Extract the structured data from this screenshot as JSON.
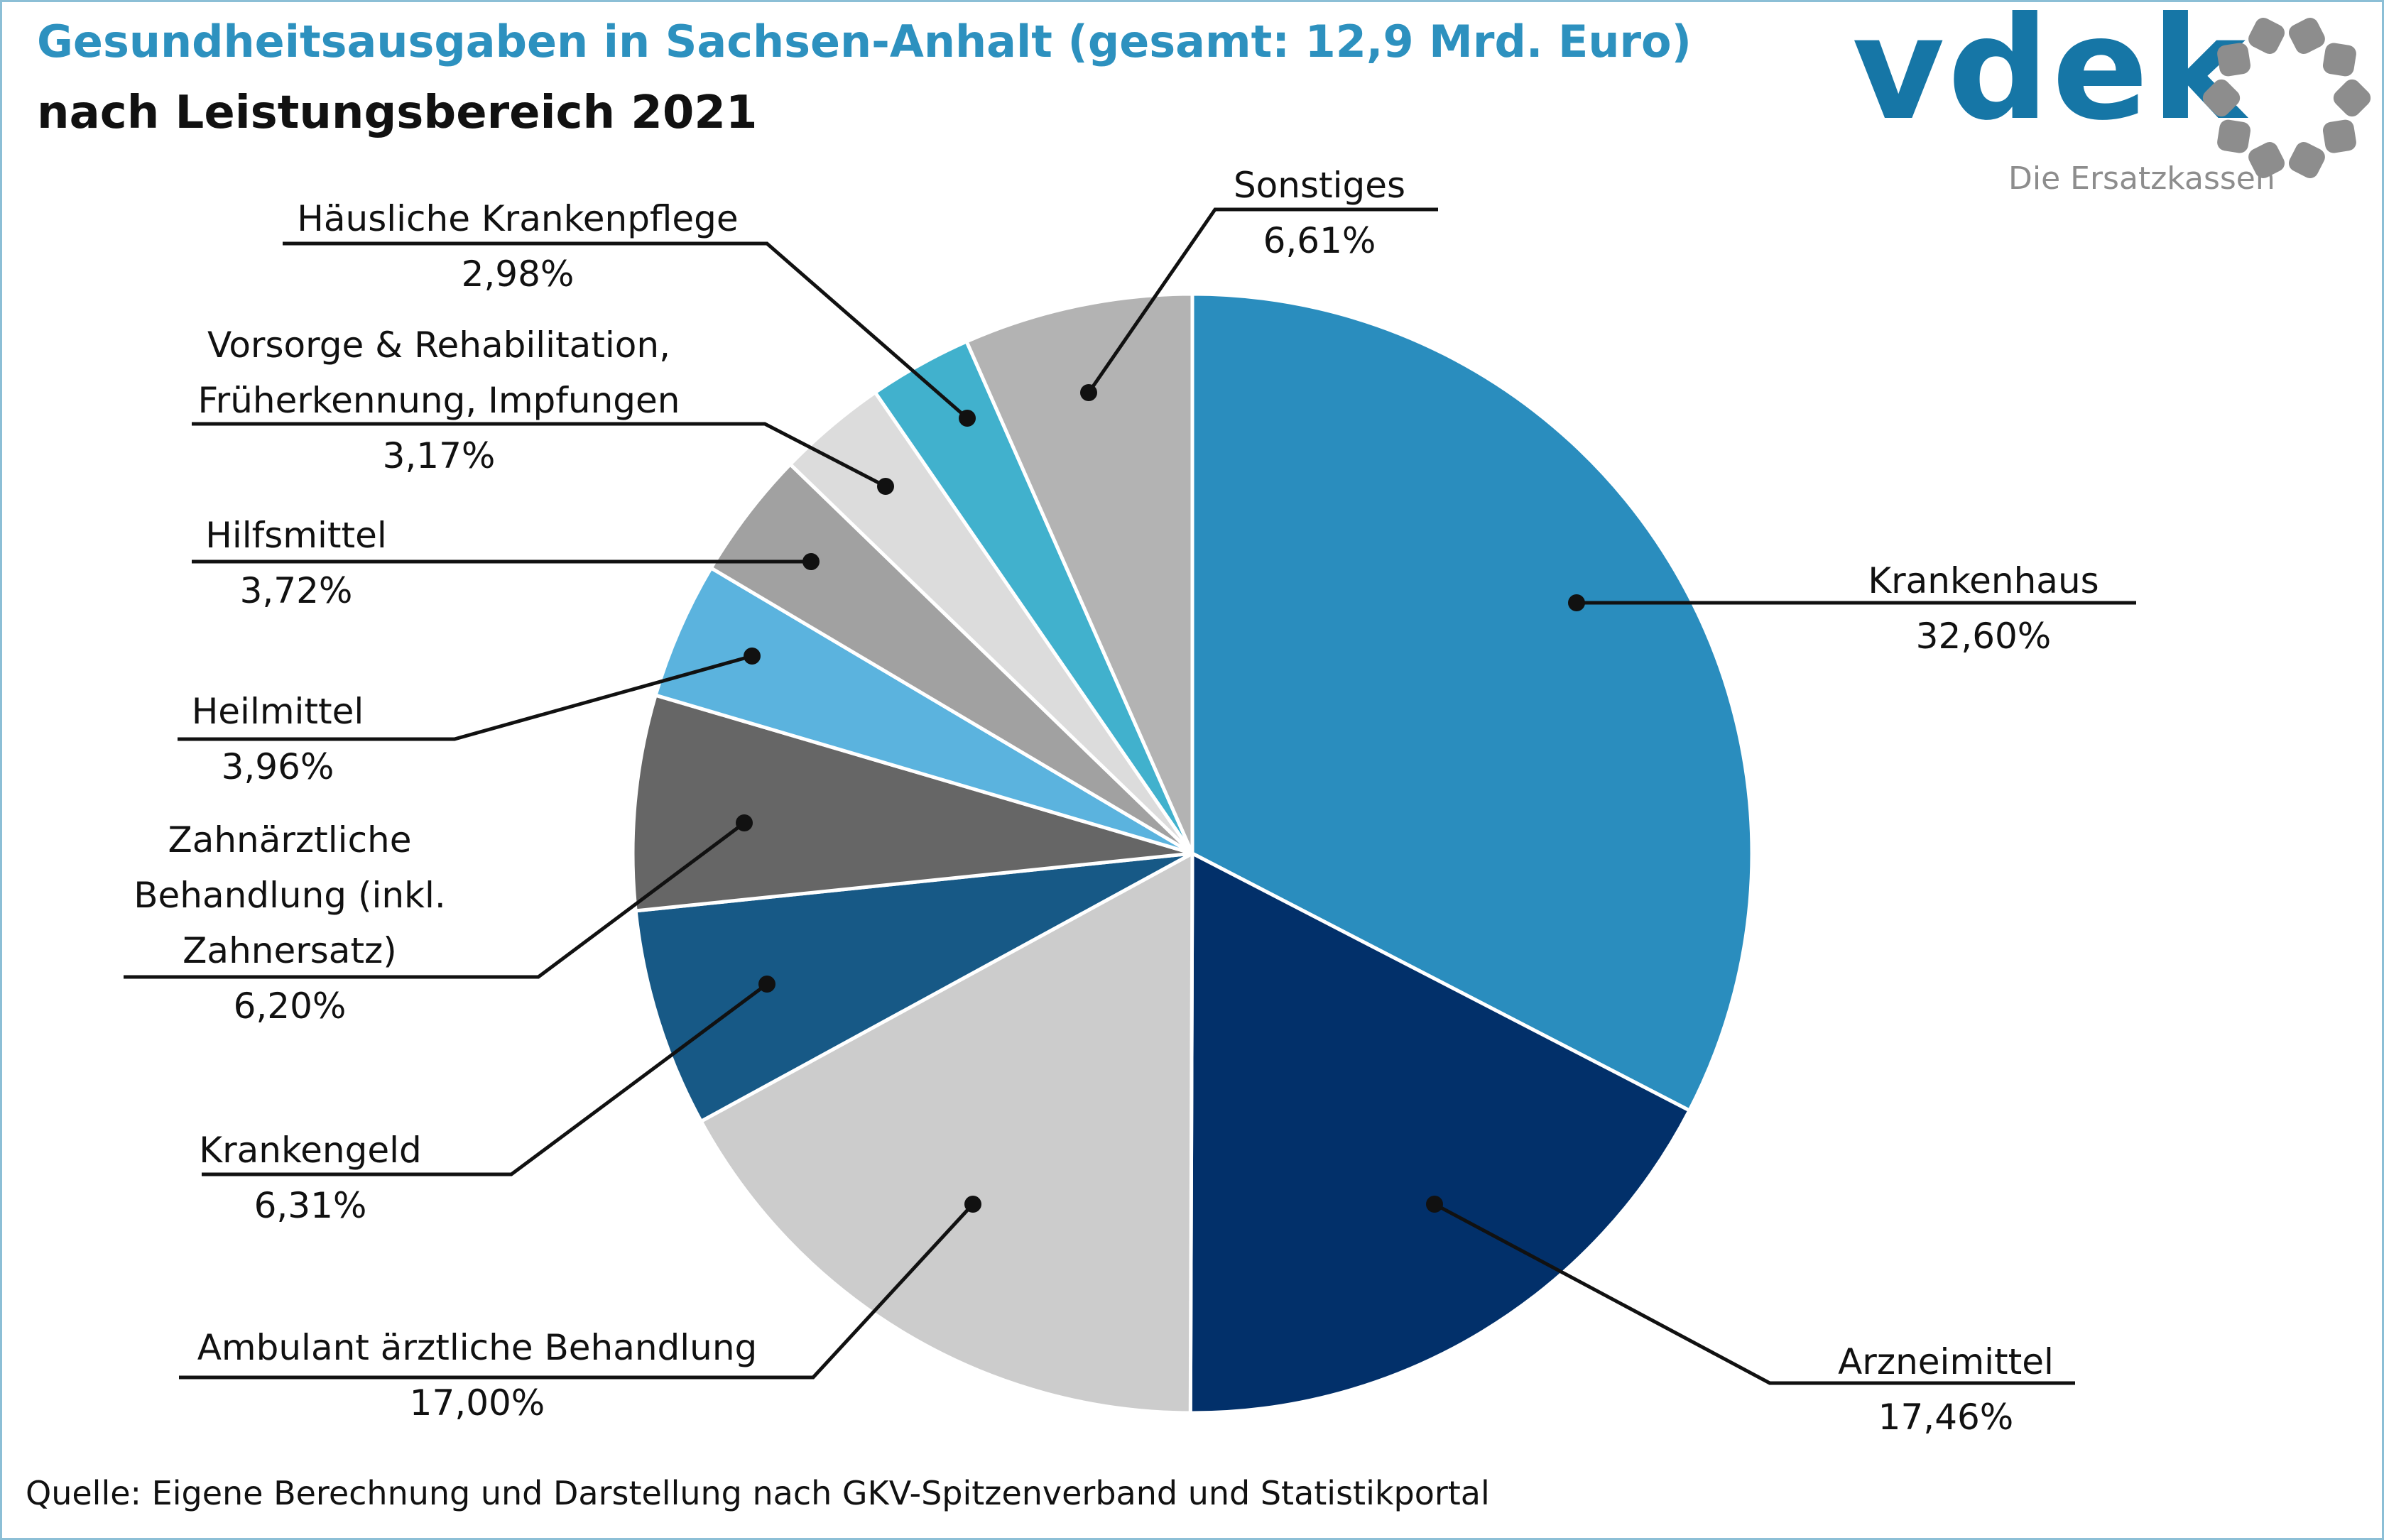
{
  "title": "Gesundheitsausgaben in Sachsen-Anhalt (gesamt: 12,9 Mrd. Euro)",
  "subtitle": "nach Leistungsbereich 2021",
  "source": "Quelle: Eigene Berechnung und Darstellung nach GKV-Spitzenverband und Statistikportal",
  "logo": {
    "word": "vdek",
    "tagline": "Die Ersatzkassen",
    "icon": "dotted-ring-icon"
  },
  "chart_data": {
    "type": "pie",
    "start": "12 o'clock",
    "direction": "clockwise",
    "slices": [
      {
        "label": "Krankenhaus",
        "lines": [
          "Krankenhaus"
        ],
        "value": 32.6,
        "value_label": "32,60%",
        "color": "#2a8dbe"
      },
      {
        "label": "Arzneimittel",
        "lines": [
          "Arzneimittel"
        ],
        "value": 17.46,
        "value_label": "17,46%",
        "color": "#02306a"
      },
      {
        "label": "Ambulant ärztliche Behandlung",
        "lines": [
          "Ambulant ärztliche Behandlung"
        ],
        "value": 17.0,
        "value_label": "17,00%",
        "color": "#cccccc"
      },
      {
        "label": "Krankengeld",
        "lines": [
          "Krankengeld"
        ],
        "value": 6.31,
        "value_label": "6,31%",
        "color": "#175986"
      },
      {
        "label": "Zahnärztliche Behandlung (inkl. Zahnersatz)",
        "lines": [
          "Zahnärztliche",
          "Behandlung (inkl.",
          "Zahnersatz)"
        ],
        "value": 6.2,
        "value_label": "6,20%",
        "color": "#666666"
      },
      {
        "label": "Heilmittel",
        "lines": [
          "Heilmittel"
        ],
        "value": 3.96,
        "value_label": "3,96%",
        "color": "#5bb3de"
      },
      {
        "label": "Hilfsmittel",
        "lines": [
          "Hilfsmittel"
        ],
        "value": 3.72,
        "value_label": "3,72%",
        "color": "#a1a1a1"
      },
      {
        "label": "Vorsorge & Rehabilitation, Früherkennung, Impfungen",
        "lines": [
          "Vorsorge & Rehabilitation,",
          "Früherkennung, Impfungen"
        ],
        "value": 3.17,
        "value_label": "3,17%",
        "color": "#dcdcdc"
      },
      {
        "label": "Häusliche Krankenpflege",
        "lines": [
          "Häusliche Krankenpflege"
        ],
        "value": 2.98,
        "value_label": "2,98%",
        "color": "#41b1cd"
      },
      {
        "label": "Sonstiges",
        "lines": [
          "Sonstiges"
        ],
        "value": 6.61,
        "value_label": "6,61%",
        "color": "#b3b3b3"
      }
    ]
  }
}
